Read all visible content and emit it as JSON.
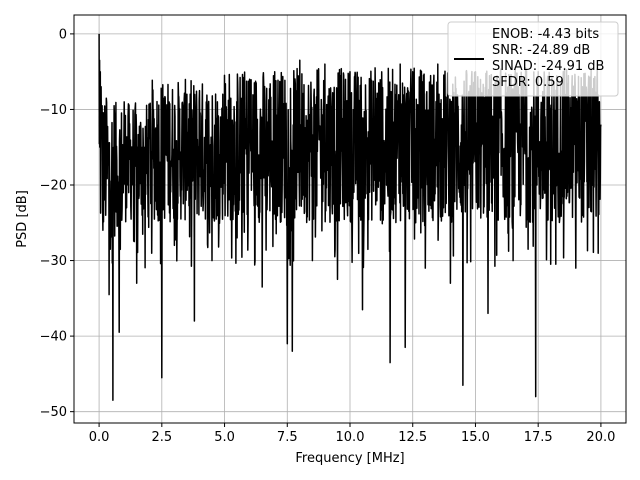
{
  "chart_data": {
    "type": "line",
    "xlabel": "Frequency [MHz]",
    "ylabel": "PSD [dB]",
    "xlim": [
      -1.0,
      21.0
    ],
    "ylim": [
      -51.5,
      2.5
    ],
    "xticks": [
      0.0,
      2.5,
      5.0,
      7.5,
      10.0,
      12.5,
      15.0,
      17.5,
      20.0
    ],
    "xtick_labels": [
      "0.0",
      "2.5",
      "5.0",
      "7.5",
      "10.0",
      "12.5",
      "15.0",
      "17.5",
      "20.0"
    ],
    "yticks": [
      0,
      -10,
      -20,
      -30,
      -40,
      -50
    ],
    "ytick_labels": [
      "0",
      "−10",
      "−20",
      "−30",
      "−40",
      "−50"
    ],
    "grid": true,
    "legend_position": "top-right",
    "legend": {
      "lines": [
        "ENOB: -4.43 bits",
        "SNR: -24.89 dB",
        "SINAD: -24.91 dB",
        "SFDR: 0.59"
      ]
    },
    "series": [
      {
        "color": "#000000",
        "x": [
          0.0,
          0.02,
          0.05,
          0.08,
          0.12,
          0.15,
          0.2,
          0.3,
          0.4,
          0.55,
          0.6,
          0.8,
          1.0,
          1.5,
          2.0,
          2.5,
          2.6,
          3.0,
          3.5,
          3.8,
          4.0,
          4.5,
          5.0,
          5.5,
          6.0,
          6.5,
          7.0,
          7.5,
          7.7,
          8.0,
          8.5,
          9.0,
          9.5,
          10.0,
          10.5,
          11.0,
          11.6,
          12.0,
          12.2,
          12.5,
          13.0,
          13.5,
          14.0,
          14.5,
          15.0,
          15.5,
          16.0,
          16.5,
          17.0,
          17.4,
          17.5,
          18.0,
          18.5,
          19.0,
          19.5,
          20.0
        ],
        "y": [
          0.0,
          -3.5,
          -5.0,
          -7.0,
          -9.5,
          -26.0,
          -22.0,
          -9.0,
          -34.5,
          -48.5,
          -9.5,
          -39.5,
          -9.0,
          -33.0,
          -10.0,
          -45.5,
          -8.5,
          -28.0,
          -8.0,
          -38.0,
          -7.5,
          -30.0,
          -5.5,
          -27.0,
          -6.0,
          -33.5,
          -5.0,
          -41.0,
          -42.0,
          -3.5,
          -30.0,
          -4.0,
          -32.5,
          -5.0,
          -36.5,
          -4.5,
          -43.5,
          -4.0,
          -41.5,
          -5.0,
          -31.0,
          -4.0,
          -33.0,
          -46.5,
          -5.0,
          -37.0,
          -5.0,
          -30.0,
          -4.5,
          -48.0,
          -5.0,
          -30.5,
          -5.0,
          -31.0,
          -7.0,
          -12.0
        ]
      }
    ]
  }
}
